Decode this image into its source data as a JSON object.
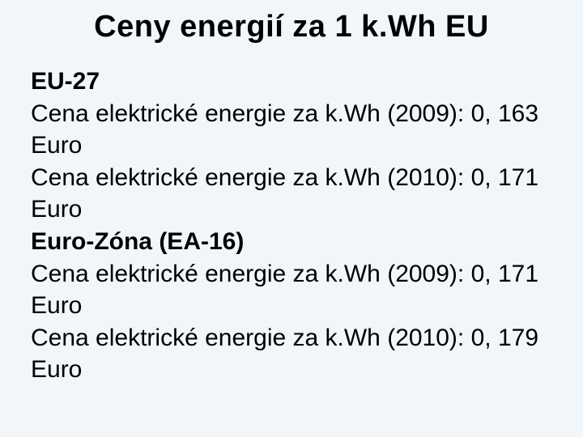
{
  "title": "Ceny energií za 1 k.Wh EU",
  "section1": {
    "heading": "EU-27",
    "line1": "Cena elektrické energie za k.Wh (2009): 0, 163 Euro",
    "line2": "Cena elektrické energie za k.Wh (2010): 0, 171 Euro"
  },
  "section2": {
    "heading": "Euro-Zóna (EA-16)",
    "line1": "Cena elektrické energie za k.Wh (2009): 0, 171 Euro",
    "line2": "Cena elektrické energie za k.Wh (2010): 0, 179 Euro"
  },
  "colors": {
    "background": "#f0f6fa",
    "text": "#000000"
  },
  "typography": {
    "title_fontsize": 38,
    "body_fontsize": 30,
    "font_family": "Arial"
  }
}
